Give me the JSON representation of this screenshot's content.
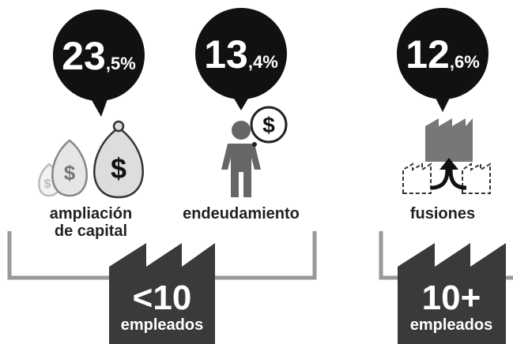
{
  "items": [
    {
      "value_main": "23",
      "value_decimal": ",5%",
      "label_lines": [
        "ampliación",
        "de capital"
      ]
    },
    {
      "value_main": "13",
      "value_decimal": ",4%",
      "label_lines": [
        "endeudamiento"
      ]
    },
    {
      "value_main": "12",
      "value_decimal": ",6%",
      "label_lines": [
        "fusiones"
      ]
    }
  ],
  "groups": [
    {
      "label": "<10",
      "sublabel": "empleados"
    },
    {
      "label": "10+",
      "sublabel": "empleados"
    }
  ],
  "icon_symbol": "$"
}
